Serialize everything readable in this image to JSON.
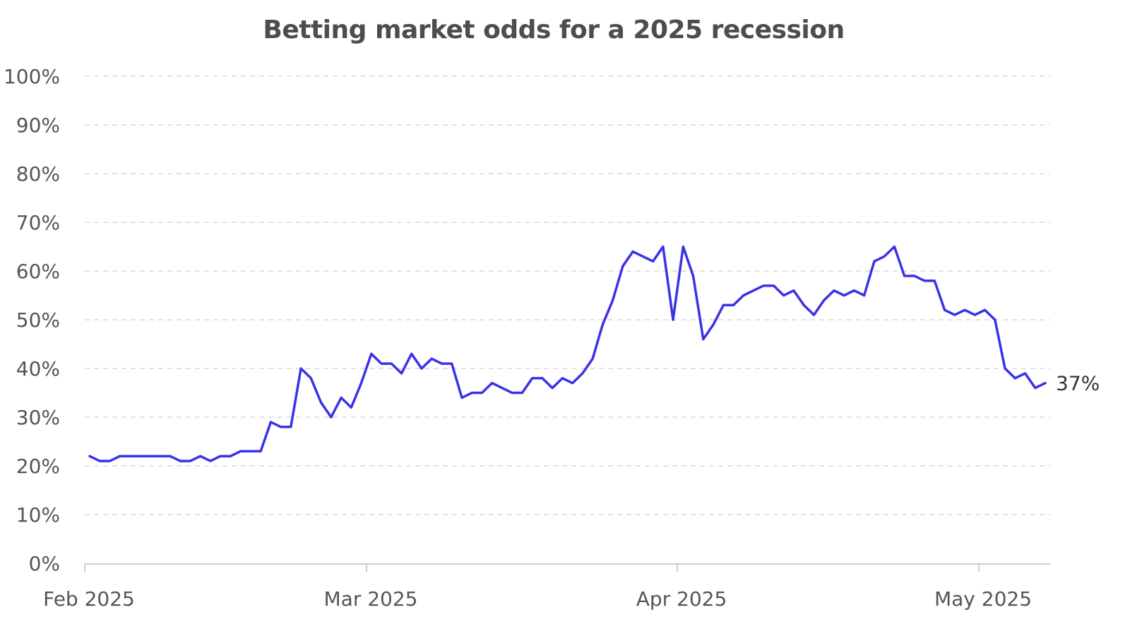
{
  "chart_data": {
    "type": "line",
    "title": "Betting market odds for a 2025 recession",
    "xlabel": "",
    "ylabel": "",
    "ylim": [
      0,
      100
    ],
    "y_ticks": [
      "0%",
      "10%",
      "20%",
      "30%",
      "40%",
      "50%",
      "60%",
      "70%",
      "80%",
      "90%",
      "100%"
    ],
    "y_tick_values": [
      0,
      10,
      20,
      30,
      40,
      50,
      60,
      70,
      80,
      90,
      100
    ],
    "x_ticks": [
      {
        "date": "2025-02-01",
        "label": "Feb 2025"
      },
      {
        "date": "2025-03-01",
        "label": "Mar 2025"
      },
      {
        "date": "2025-04-01",
        "label": "Apr 2025"
      },
      {
        "date": "2025-05-01",
        "label": "May 2025"
      }
    ],
    "xlim": [
      "2025-02-01",
      "2025-05-07"
    ],
    "grid": true,
    "line_color": "#3a32e8",
    "end_label": "37%",
    "series": [
      {
        "points": [
          [
            "2025-02-01",
            22
          ],
          [
            "2025-02-02",
            21
          ],
          [
            "2025-02-03",
            21
          ],
          [
            "2025-02-04",
            22
          ],
          [
            "2025-02-05",
            22
          ],
          [
            "2025-02-06",
            22
          ],
          [
            "2025-02-07",
            22
          ],
          [
            "2025-02-08",
            22
          ],
          [
            "2025-02-09",
            22
          ],
          [
            "2025-02-10",
            21
          ],
          [
            "2025-02-11",
            21
          ],
          [
            "2025-02-12",
            22
          ],
          [
            "2025-02-13",
            21
          ],
          [
            "2025-02-14",
            22
          ],
          [
            "2025-02-15",
            22
          ],
          [
            "2025-02-16",
            23
          ],
          [
            "2025-02-17",
            23
          ],
          [
            "2025-02-18",
            23
          ],
          [
            "2025-02-19",
            29
          ],
          [
            "2025-02-20",
            28
          ],
          [
            "2025-02-21",
            28
          ],
          [
            "2025-02-22",
            40
          ],
          [
            "2025-02-23",
            38
          ],
          [
            "2025-02-24",
            33
          ],
          [
            "2025-02-25",
            30
          ],
          [
            "2025-02-26",
            34
          ],
          [
            "2025-02-27",
            32
          ],
          [
            "2025-02-28",
            37
          ],
          [
            "2025-03-01",
            43
          ],
          [
            "2025-03-02",
            41
          ],
          [
            "2025-03-03",
            41
          ],
          [
            "2025-03-04",
            39
          ],
          [
            "2025-03-05",
            43
          ],
          [
            "2025-03-06",
            40
          ],
          [
            "2025-03-07",
            42
          ],
          [
            "2025-03-08",
            41
          ],
          [
            "2025-03-09",
            41
          ],
          [
            "2025-03-10",
            34
          ],
          [
            "2025-03-11",
            35
          ],
          [
            "2025-03-12",
            35
          ],
          [
            "2025-03-13",
            37
          ],
          [
            "2025-03-14",
            36
          ],
          [
            "2025-03-15",
            35
          ],
          [
            "2025-03-16",
            35
          ],
          [
            "2025-03-17",
            38
          ],
          [
            "2025-03-18",
            38
          ],
          [
            "2025-03-19",
            36
          ],
          [
            "2025-03-20",
            38
          ],
          [
            "2025-03-21",
            37
          ],
          [
            "2025-03-22",
            39
          ],
          [
            "2025-03-23",
            42
          ],
          [
            "2025-03-24",
            49
          ],
          [
            "2025-03-25",
            54
          ],
          [
            "2025-03-26",
            61
          ],
          [
            "2025-03-27",
            64
          ],
          [
            "2025-03-28",
            63
          ],
          [
            "2025-03-29",
            62
          ],
          [
            "2025-03-30",
            65
          ],
          [
            "2025-03-31",
            50
          ],
          [
            "2025-04-01",
            65
          ],
          [
            "2025-04-02",
            59
          ],
          [
            "2025-04-03",
            46
          ],
          [
            "2025-04-04",
            49
          ],
          [
            "2025-04-05",
            53
          ],
          [
            "2025-04-06",
            53
          ],
          [
            "2025-04-07",
            55
          ],
          [
            "2025-04-08",
            56
          ],
          [
            "2025-04-09",
            57
          ],
          [
            "2025-04-10",
            57
          ],
          [
            "2025-04-11",
            55
          ],
          [
            "2025-04-12",
            56
          ],
          [
            "2025-04-13",
            53
          ],
          [
            "2025-04-14",
            51
          ],
          [
            "2025-04-15",
            54
          ],
          [
            "2025-04-16",
            56
          ],
          [
            "2025-04-17",
            55
          ],
          [
            "2025-04-18",
            56
          ],
          [
            "2025-04-19",
            55
          ],
          [
            "2025-04-20",
            62
          ],
          [
            "2025-04-21",
            63
          ],
          [
            "2025-04-22",
            65
          ],
          [
            "2025-04-23",
            59
          ],
          [
            "2025-04-24",
            59
          ],
          [
            "2025-04-25",
            58
          ],
          [
            "2025-04-26",
            58
          ],
          [
            "2025-04-27",
            52
          ],
          [
            "2025-04-28",
            51
          ],
          [
            "2025-04-29",
            52
          ],
          [
            "2025-04-30",
            51
          ],
          [
            "2025-05-01",
            52
          ],
          [
            "2025-05-02",
            50
          ],
          [
            "2025-05-03",
            40
          ],
          [
            "2025-05-04",
            38
          ],
          [
            "2025-05-05",
            39
          ],
          [
            "2025-05-06",
            36
          ],
          [
            "2025-05-07",
            37
          ]
        ]
      }
    ]
  }
}
